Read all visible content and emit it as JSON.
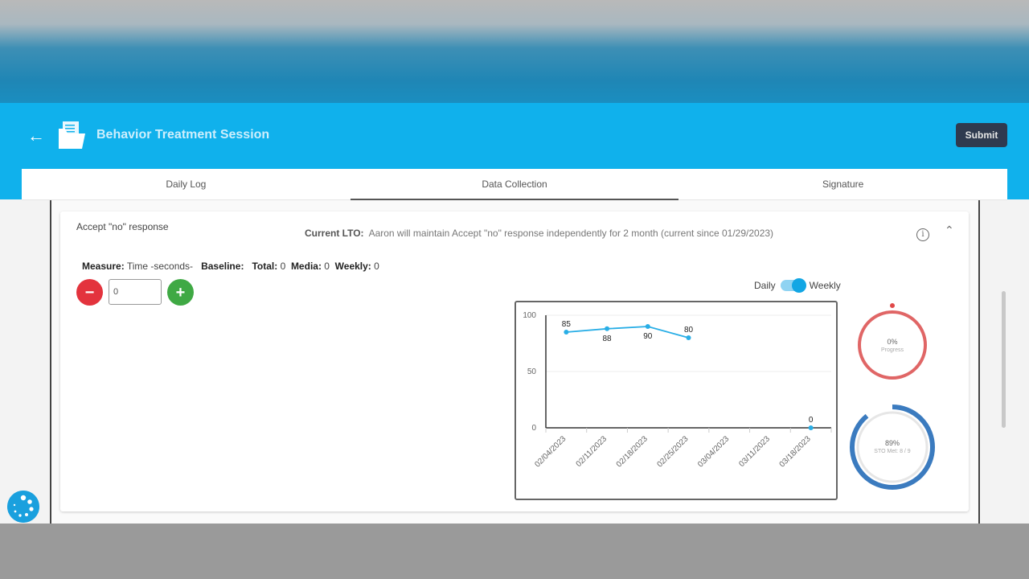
{
  "header": {
    "title": "Behavior Treatment Session",
    "submit_label": "Submit",
    "back_icon": "arrow-left-icon",
    "doc_icon": "folder-document-icon"
  },
  "tabs": [
    {
      "label": "Daily Log"
    },
    {
      "label": "Data Collection",
      "active": true
    },
    {
      "label": "Signature"
    }
  ],
  "behavior": {
    "name": "Accept \"no\" response",
    "lto_label": "Current LTO:",
    "lto_text": "Aaron will maintain Accept \"no\" response independently for 2 month (current since 01/29/2023)",
    "measure_label": "Measure:",
    "measure_value": "Time -seconds-",
    "baseline_label": "Baseline:",
    "total_label": "Total:",
    "total_value": "0",
    "media_label": "Media:",
    "media_value": "0",
    "weekly_label": "Weekly:",
    "weekly_value": "0",
    "counter_value": "0",
    "minus": "−",
    "plus": "+",
    "toggle": {
      "left": "Daily",
      "right": "Weekly",
      "state": "Weekly"
    }
  },
  "progress_ring": {
    "value": "0%",
    "label": "Progress",
    "percent": 0,
    "color": "#e06666"
  },
  "sto_ring": {
    "value": "89%",
    "label": "STO Met: 8 / 9",
    "percent": 89,
    "color": "#3b7bbf"
  },
  "colors": {
    "appbar": "#10b1ec",
    "line": "#29aee6"
  },
  "chart_data": {
    "type": "line",
    "categories": [
      "02/04/2023",
      "02/11/2023",
      "02/18/2023",
      "02/25/2023",
      "03/04/2023",
      "03/11/2023",
      "03/18/2023"
    ],
    "values": [
      85,
      88,
      90,
      80,
      null,
      null,
      0
    ],
    "ylim": [
      0,
      100
    ],
    "yticks": [
      "0",
      "50",
      "100"
    ],
    "grid": true
  }
}
